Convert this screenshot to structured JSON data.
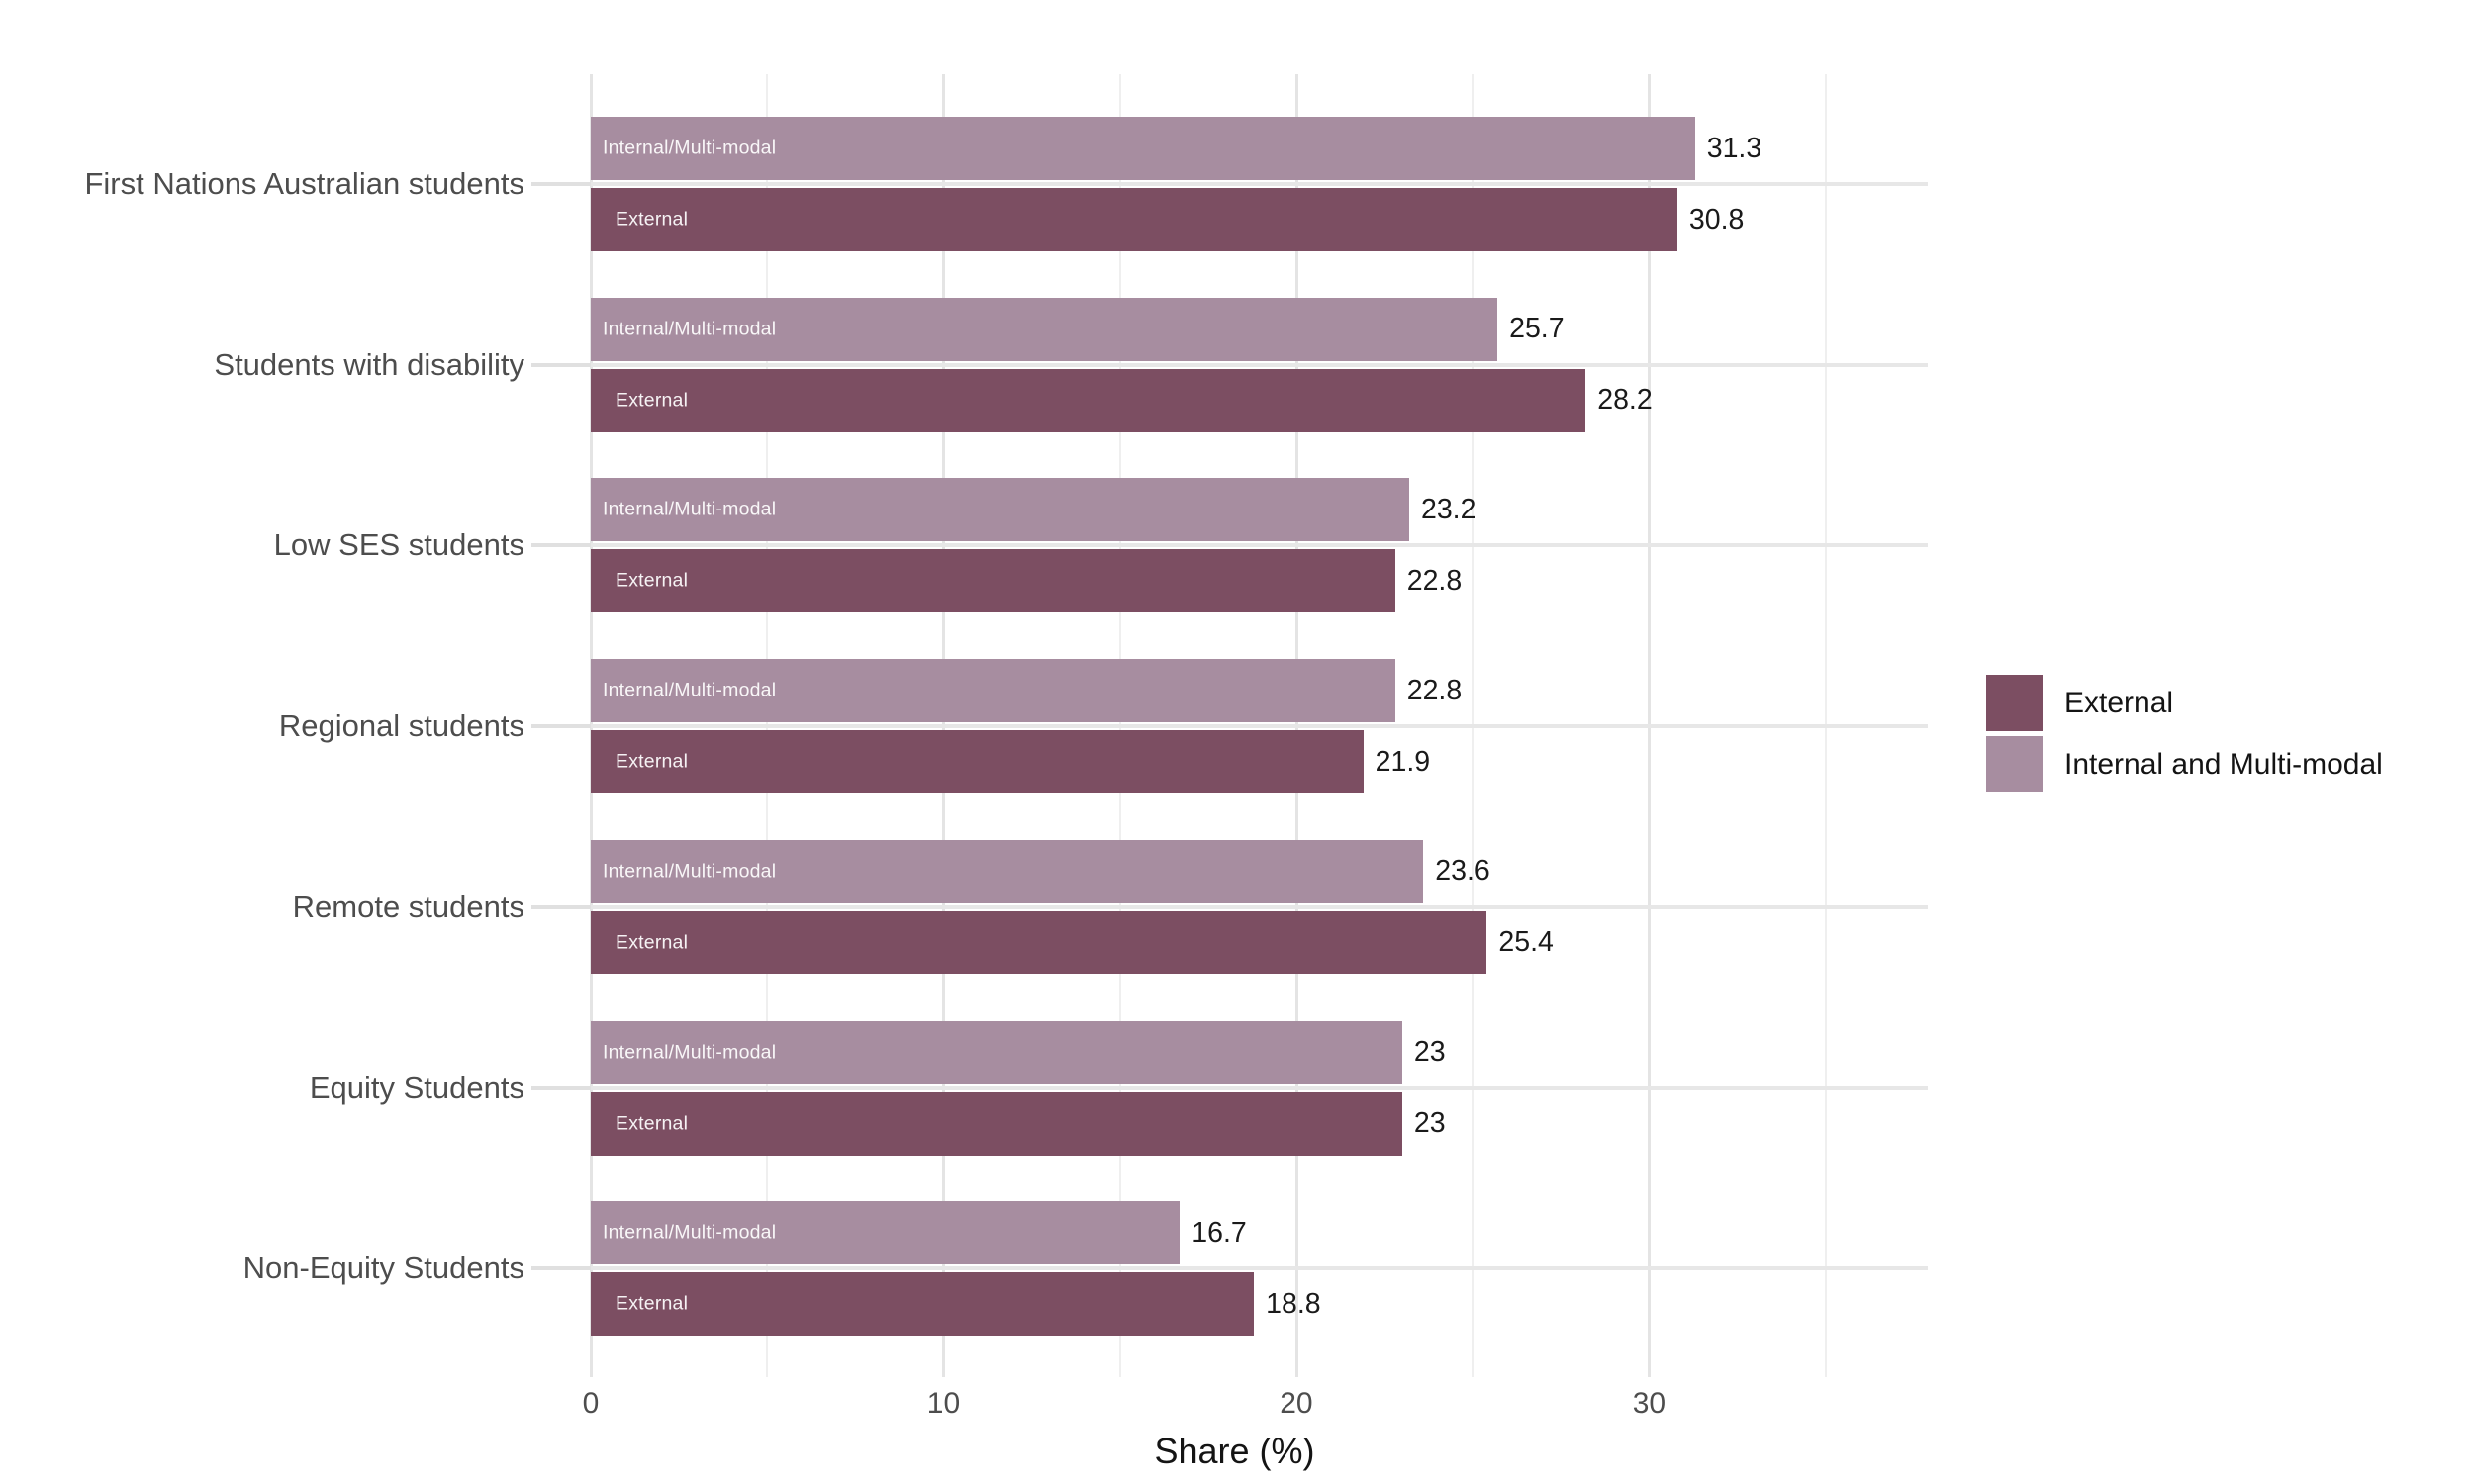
{
  "chart_data": {
    "type": "bar",
    "orientation": "horizontal",
    "title": "",
    "xlabel": "Share (%)",
    "ylabel": "",
    "categories": [
      "First Nations Australian students",
      "Students with disability",
      "Low SES students",
      "Regional students",
      "Remote students",
      "Equity Students",
      "Non-Equity Students"
    ],
    "series": [
      {
        "name": "Internal and Multi-modal",
        "bar_label": "Internal/Multi-modal",
        "color": "#A78DA0",
        "values": [
          31.3,
          25.7,
          23.2,
          22.8,
          23.6,
          23,
          16.7
        ],
        "value_labels": [
          "31.3",
          "25.7",
          "23.2",
          "22.8",
          "23.6",
          "23",
          "16.7"
        ]
      },
      {
        "name": "External",
        "bar_label": "External",
        "color": "#7C4E62",
        "values": [
          30.8,
          28.2,
          22.8,
          21.9,
          25.4,
          23,
          18.8
        ],
        "value_labels": [
          "30.8",
          "28.2",
          "22.8",
          "21.9",
          "25.4",
          "23",
          "18.8"
        ]
      }
    ],
    "x_ticks": [
      0,
      10,
      20,
      30
    ],
    "x_tick_labels": [
      "0",
      "10",
      "20",
      "30"
    ],
    "x_minor_ticks": [
      5,
      15,
      25,
      35
    ],
    "xlim": [
      0,
      37.9
    ],
    "grid": true,
    "legend": {
      "position": "right",
      "entries": [
        {
          "label": "External",
          "color": "#7C4E62"
        },
        {
          "label": "Internal and Multi-modal",
          "color": "#A78DA0"
        }
      ]
    }
  }
}
